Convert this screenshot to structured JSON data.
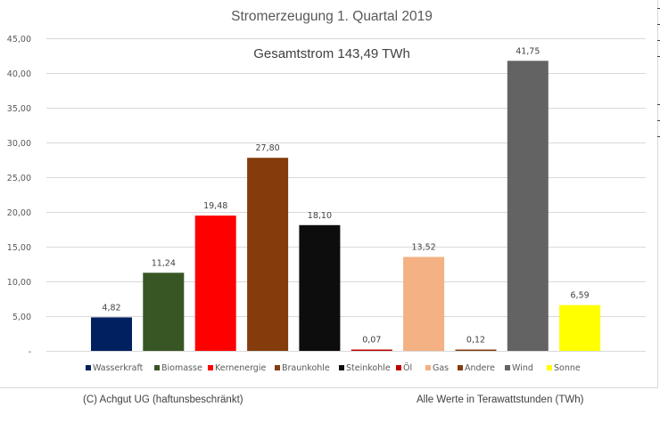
{
  "chart_data": {
    "type": "bar",
    "title": "Stromerzeugung 1. Quartal 2019",
    "subtitle": "Gesamtstrom 143,49 TWh",
    "xlabel": "",
    "ylabel": "",
    "ylim": [
      0,
      45
    ],
    "ytick_step": 5,
    "yticks": [
      "-",
      "5,00",
      "10,00",
      "15,00",
      "20,00",
      "25,00",
      "30,00",
      "35,00",
      "40,00",
      "45,00"
    ],
    "grid": true,
    "legend_position": "bottom",
    "categories": [
      "Wasserkraft",
      "Biomasse",
      "Kernenergie",
      "Braunkohle",
      "Steinkohle",
      "Öl",
      "Gas",
      "Andere",
      "Wind",
      "Sonne"
    ],
    "values": [
      4.82,
      11.24,
      19.48,
      27.8,
      18.1,
      0.07,
      13.52,
      0.12,
      41.75,
      6.59
    ],
    "value_labels": [
      "4,82",
      "11,24",
      "19,48",
      "27,80",
      "18,10",
      "0,07",
      "13,52",
      "0,12",
      "41,75",
      "6,59"
    ],
    "colors": [
      "#002060",
      "#375623",
      "#ff0000",
      "#843c0c",
      "#0d0d0d",
      "#c00000",
      "#f4b183",
      "#843c0c",
      "#636363",
      "#ffff00"
    ]
  },
  "footer": {
    "left": "(C) Achgut UG (haftunsbeschränkt)",
    "right": "Alle Werte in Terawattstunden (TWh)"
  }
}
